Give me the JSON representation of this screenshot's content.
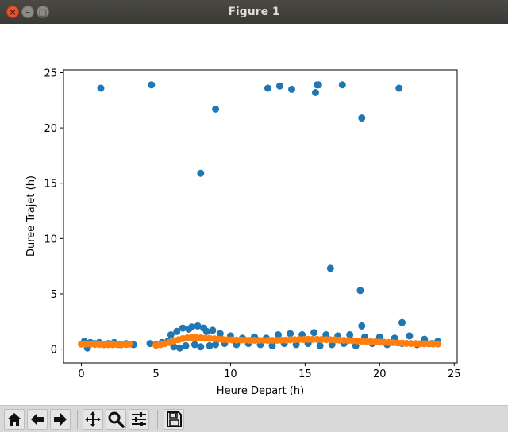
{
  "window": {
    "title": "Figure 1"
  },
  "toolbar": {
    "buttons": [
      {
        "name": "home-button",
        "icon": "home-icon"
      },
      {
        "name": "back-button",
        "icon": "arrow-left-icon"
      },
      {
        "name": "forward-button",
        "icon": "arrow-right-icon"
      },
      {
        "name": "pan-button",
        "icon": "move-icon"
      },
      {
        "name": "zoom-button",
        "icon": "magnifier-icon"
      },
      {
        "name": "subplots-button",
        "icon": "sliders-icon"
      },
      {
        "name": "save-button",
        "icon": "floppy-disk-icon"
      }
    ]
  },
  "chart_data": {
    "type": "scatter",
    "xlabel": "Heure Depart (h)",
    "ylabel": "Duree Trajet (h)",
    "xlim": [
      -1.2,
      25.2
    ],
    "ylim": [
      -1.25,
      25.25
    ],
    "xticks": [
      0,
      5,
      10,
      15,
      20,
      25
    ],
    "yticks": [
      0,
      5,
      10,
      15,
      20,
      25
    ],
    "grid": false,
    "colors": {
      "series1": "#1f77b4",
      "series2": "#ff7f0e"
    },
    "series": [
      {
        "color": "#1f77b4",
        "points": [
          [
            1.3,
            23.6
          ],
          [
            4.7,
            23.9
          ],
          [
            9.0,
            21.7
          ],
          [
            8.0,
            15.9
          ],
          [
            12.5,
            23.6
          ],
          [
            13.3,
            23.8
          ],
          [
            14.1,
            23.5
          ],
          [
            15.7,
            23.2
          ],
          [
            15.8,
            23.9
          ],
          [
            15.9,
            23.9
          ],
          [
            17.5,
            23.9
          ],
          [
            18.8,
            20.9
          ],
          [
            21.3,
            23.6
          ],
          [
            16.7,
            7.3
          ],
          [
            18.7,
            5.3
          ],
          [
            18.8,
            2.1
          ],
          [
            21.5,
            2.4
          ],
          [
            0.2,
            0.7
          ],
          [
            0.4,
            0.1
          ],
          [
            0.6,
            0.6
          ],
          [
            0.9,
            0.5
          ],
          [
            1.2,
            0.6
          ],
          [
            1.5,
            0.4
          ],
          [
            1.8,
            0.5
          ],
          [
            2.2,
            0.6
          ],
          [
            2.6,
            0.4
          ],
          [
            3.0,
            0.5
          ],
          [
            3.5,
            0.4
          ],
          [
            4.6,
            0.5
          ],
          [
            5.0,
            0.4
          ],
          [
            5.4,
            0.6
          ],
          [
            5.8,
            0.7
          ],
          [
            6.0,
            1.3
          ],
          [
            6.2,
            0.2
          ],
          [
            6.4,
            1.6
          ],
          [
            6.6,
            0.1
          ],
          [
            6.8,
            1.9
          ],
          [
            7.0,
            0.3
          ],
          [
            7.2,
            1.8
          ],
          [
            7.4,
            2.0
          ],
          [
            7.6,
            0.4
          ],
          [
            7.8,
            2.1
          ],
          [
            8.0,
            0.2
          ],
          [
            8.2,
            1.9
          ],
          [
            8.4,
            1.6
          ],
          [
            8.6,
            0.3
          ],
          [
            8.8,
            1.7
          ],
          [
            9.0,
            0.4
          ],
          [
            9.3,
            1.4
          ],
          [
            9.6,
            0.5
          ],
          [
            10.0,
            1.2
          ],
          [
            10.4,
            0.4
          ],
          [
            10.8,
            1.0
          ],
          [
            11.2,
            0.5
          ],
          [
            11.6,
            1.1
          ],
          [
            12.0,
            0.4
          ],
          [
            12.4,
            1.0
          ],
          [
            12.8,
            0.3
          ],
          [
            13.2,
            1.3
          ],
          [
            13.6,
            0.5
          ],
          [
            14.0,
            1.4
          ],
          [
            14.4,
            0.4
          ],
          [
            14.8,
            1.3
          ],
          [
            15.2,
            0.5
          ],
          [
            15.6,
            1.5
          ],
          [
            16.0,
            0.3
          ],
          [
            16.4,
            1.3
          ],
          [
            16.8,
            0.4
          ],
          [
            17.2,
            1.2
          ],
          [
            17.6,
            0.5
          ],
          [
            18.0,
            1.3
          ],
          [
            18.4,
            0.3
          ],
          [
            19.0,
            1.1
          ],
          [
            19.5,
            0.5
          ],
          [
            20.0,
            1.1
          ],
          [
            20.5,
            0.4
          ],
          [
            21.0,
            1.0
          ],
          [
            21.5,
            0.5
          ],
          [
            22.0,
            1.2
          ],
          [
            22.5,
            0.4
          ],
          [
            23.0,
            0.9
          ],
          [
            23.5,
            0.5
          ],
          [
            23.9,
            0.7
          ]
        ]
      },
      {
        "color": "#ff7f0e",
        "points": [
          [
            0.0,
            0.45
          ],
          [
            0.3,
            0.45
          ],
          [
            0.6,
            0.45
          ],
          [
            0.9,
            0.42
          ],
          [
            1.2,
            0.42
          ],
          [
            1.5,
            0.4
          ],
          [
            1.8,
            0.4
          ],
          [
            2.1,
            0.4
          ],
          [
            2.4,
            0.4
          ],
          [
            2.7,
            0.4
          ],
          [
            3.0,
            0.42
          ],
          [
            3.2,
            0.45
          ],
          [
            5.0,
            0.35
          ],
          [
            5.3,
            0.4
          ],
          [
            5.6,
            0.5
          ],
          [
            5.9,
            0.6
          ],
          [
            6.2,
            0.75
          ],
          [
            6.5,
            0.85
          ],
          [
            6.8,
            0.95
          ],
          [
            7.1,
            1.02
          ],
          [
            7.4,
            1.05
          ],
          [
            7.7,
            1.05
          ],
          [
            8.0,
            1.02
          ],
          [
            8.3,
            1.0
          ],
          [
            8.6,
            0.97
          ],
          [
            8.9,
            0.93
          ],
          [
            9.2,
            0.9
          ],
          [
            9.5,
            0.87
          ],
          [
            9.8,
            0.85
          ],
          [
            10.1,
            0.83
          ],
          [
            10.4,
            0.82
          ],
          [
            10.7,
            0.82
          ],
          [
            11.0,
            0.82
          ],
          [
            11.3,
            0.8
          ],
          [
            11.6,
            0.8
          ],
          [
            11.9,
            0.8
          ],
          [
            12.2,
            0.8
          ],
          [
            12.5,
            0.8
          ],
          [
            12.8,
            0.8
          ],
          [
            13.1,
            0.8
          ],
          [
            13.4,
            0.82
          ],
          [
            13.7,
            0.82
          ],
          [
            14.0,
            0.85
          ],
          [
            14.3,
            0.85
          ],
          [
            14.6,
            0.87
          ],
          [
            14.9,
            0.87
          ],
          [
            15.2,
            0.88
          ],
          [
            15.5,
            0.88
          ],
          [
            15.8,
            0.88
          ],
          [
            16.1,
            0.87
          ],
          [
            16.4,
            0.86
          ],
          [
            16.7,
            0.85
          ],
          [
            17.0,
            0.84
          ],
          [
            17.3,
            0.82
          ],
          [
            17.6,
            0.8
          ],
          [
            17.9,
            0.78
          ],
          [
            18.2,
            0.76
          ],
          [
            18.5,
            0.74
          ],
          [
            18.8,
            0.72
          ],
          [
            19.1,
            0.7
          ],
          [
            19.4,
            0.68
          ],
          [
            19.7,
            0.66
          ],
          [
            20.0,
            0.64
          ],
          [
            20.3,
            0.62
          ],
          [
            20.6,
            0.6
          ],
          [
            20.9,
            0.58
          ],
          [
            21.2,
            0.56
          ],
          [
            21.5,
            0.54
          ],
          [
            21.8,
            0.52
          ],
          [
            22.1,
            0.5
          ],
          [
            22.4,
            0.5
          ],
          [
            22.7,
            0.48
          ],
          [
            23.0,
            0.48
          ],
          [
            23.3,
            0.47
          ],
          [
            23.6,
            0.47
          ],
          [
            23.9,
            0.46
          ]
        ]
      }
    ]
  }
}
